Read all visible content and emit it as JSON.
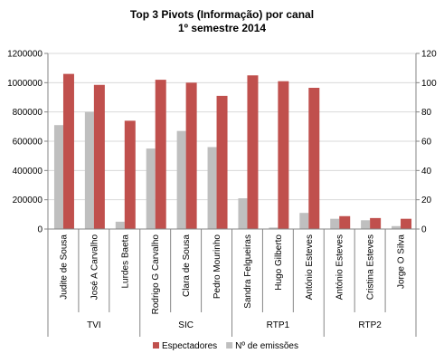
{
  "chart_data": {
    "type": "bar",
    "title": [
      "Top 3 Pivots (Informação) por canal",
      "1º semestre 2014"
    ],
    "groups": [
      {
        "name": "TVI",
        "categories": [
          "Judite de Sousa",
          "José A Carvalho",
          "Lurdes Baeta"
        ]
      },
      {
        "name": "SIC",
        "categories": [
          "Rodrigo G Carvalho",
          "Clara de Sousa",
          "Pedro Mourinho"
        ]
      },
      {
        "name": "RTP1",
        "categories": [
          "Sandra Felgueiras",
          "Hugo Gilberto",
          "António Esteves"
        ]
      },
      {
        "name": "RTP2",
        "categories": [
          "António Esteves",
          "Cristina Esteves",
          "Jorge O Silva"
        ]
      }
    ],
    "series": [
      {
        "name": "Nº de emissões",
        "axis": "right",
        "color": "#BFBFBF",
        "values": [
          71,
          80,
          5,
          55,
          67,
          56,
          21,
          1,
          11,
          7,
          6,
          2
        ]
      },
      {
        "name": "Espectadores",
        "axis": "left",
        "color": "#C0504D",
        "values": [
          1060000,
          985000,
          740000,
          1020000,
          1000000,
          910000,
          1050000,
          1010000,
          965000,
          88000,
          75000,
          70000
        ]
      }
    ],
    "y_left": {
      "min": 0,
      "max": 1200000,
      "ticks": [
        0,
        200000,
        400000,
        600000,
        800000,
        1000000,
        1200000
      ]
    },
    "y_right": {
      "min": 0,
      "max": 120,
      "ticks": [
        0,
        20,
        40,
        60,
        80,
        100,
        120
      ]
    },
    "legend": {
      "position": "bottom",
      "order": [
        "Espectadores",
        "Nº de emissões"
      ]
    },
    "grid": true
  }
}
